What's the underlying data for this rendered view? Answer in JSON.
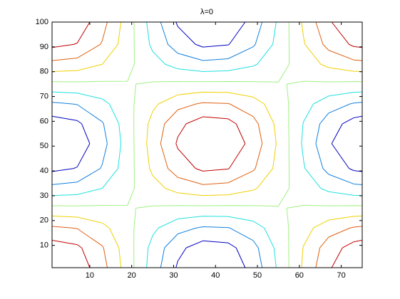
{
  "chart_data": {
    "type": "contour",
    "title": "λ=0",
    "x": [
      1,
      7,
      13,
      19,
      25,
      31,
      37,
      43,
      49,
      55,
      61,
      67,
      73,
      75
    ],
    "y": [
      1,
      9,
      17,
      25,
      33,
      41,
      51,
      59,
      67,
      75,
      83,
      91,
      100
    ],
    "z": [
      [
        1.0,
        0.91,
        0.59,
        0.13,
        -0.37,
        -0.78,
        -0.99,
        -0.94,
        -0.66,
        -0.21,
        0.29,
        0.72,
        0.97,
        1.0
      ],
      [
        0.88,
        0.8,
        0.52,
        0.11,
        -0.33,
        -0.69,
        -0.87,
        -0.83,
        -0.58,
        -0.18,
        0.26,
        0.63,
        0.85,
        0.88
      ],
      [
        0.54,
        0.49,
        0.32,
        0.07,
        -0.2,
        -0.42,
        -0.53,
        -0.51,
        -0.36,
        -0.11,
        0.16,
        0.39,
        0.52,
        0.54
      ],
      [
        0.06,
        0.05,
        0.04,
        0.01,
        -0.02,
        -0.05,
        -0.06,
        -0.06,
        -0.04,
        -0.01,
        0.02,
        0.04,
        0.06,
        0.06
      ],
      [
        -0.43,
        -0.39,
        -0.25,
        -0.06,
        0.16,
        0.34,
        0.43,
        0.4,
        0.28,
        0.09,
        -0.12,
        -0.31,
        -0.42,
        -0.43
      ],
      [
        -0.81,
        -0.74,
        -0.48,
        -0.11,
        0.3,
        0.63,
        0.8,
        0.76,
        0.53,
        0.17,
        -0.23,
        -0.58,
        -0.79,
        -0.81
      ],
      [
        -1.0,
        -0.91,
        -0.59,
        -0.13,
        0.37,
        0.78,
        0.99,
        0.94,
        0.66,
        0.21,
        -0.29,
        -0.72,
        -0.97,
        -1.0
      ],
      [
        -0.88,
        -0.8,
        -0.52,
        -0.11,
        0.33,
        0.69,
        0.87,
        0.83,
        0.58,
        0.18,
        -0.26,
        -0.63,
        -0.85,
        -0.88
      ],
      [
        -0.54,
        -0.49,
        -0.32,
        -0.07,
        0.2,
        0.42,
        0.53,
        0.51,
        0.36,
        0.11,
        -0.16,
        -0.39,
        -0.52,
        -0.54
      ],
      [
        -0.06,
        -0.05,
        -0.04,
        -0.01,
        0.02,
        0.05,
        0.06,
        0.06,
        0.04,
        0.01,
        -0.02,
        -0.04,
        -0.06,
        -0.06
      ],
      [
        0.43,
        0.39,
        0.25,
        0.06,
        -0.16,
        -0.34,
        -0.43,
        -0.4,
        -0.28,
        -0.09,
        0.12,
        0.31,
        0.42,
        0.43
      ],
      [
        0.81,
        0.74,
        0.48,
        0.11,
        -0.3,
        -0.63,
        -0.8,
        -0.76,
        -0.53,
        -0.17,
        0.23,
        0.58,
        0.79,
        0.81
      ],
      [
        1.0,
        0.91,
        0.59,
        0.13,
        -0.37,
        -0.78,
        -0.99,
        -0.94,
        -0.66,
        -0.21,
        0.29,
        0.72,
        0.97,
        1.0
      ]
    ],
    "levels": [
      -0.75,
      -0.5,
      -0.25,
      0,
      0.25,
      0.5,
      0.75
    ],
    "colors": [
      "#0000c0",
      "#1080e0",
      "#20e0e0",
      "#a0f080",
      "#f0d000",
      "#e06010",
      "#c00000"
    ],
    "xlim": [
      1,
      75
    ],
    "ylim": [
      1,
      100
    ],
    "xticks": [
      10,
      20,
      30,
      40,
      50,
      60,
      70
    ],
    "yticks": [
      10,
      20,
      30,
      40,
      50,
      60,
      70,
      80,
      90,
      100
    ]
  }
}
